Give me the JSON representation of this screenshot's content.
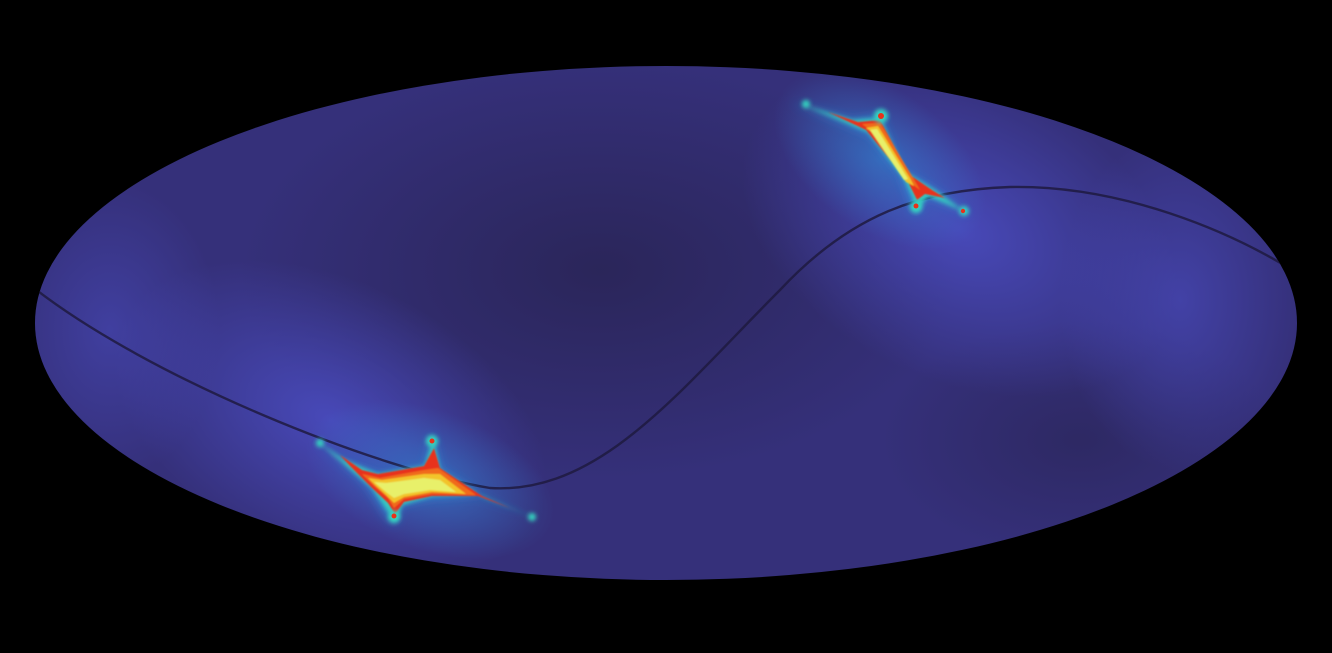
{
  "figure": {
    "projection": "mollweide",
    "background_color": "#000000",
    "map_base_color": "#35307a",
    "map_dark_color": "#2a2558",
    "map_light_color": "#4a4cc0",
    "curve_color": "#1e1a40",
    "colormap": [
      "#3a36a0",
      "#2f8fd8",
      "#35d4c0",
      "#e8f06a",
      "#f2c42a",
      "#f06a1e",
      "#e8321a"
    ]
  },
  "features": [
    {
      "name": "upper-right-caustic"
    },
    {
      "name": "lower-left-caustic"
    }
  ]
}
